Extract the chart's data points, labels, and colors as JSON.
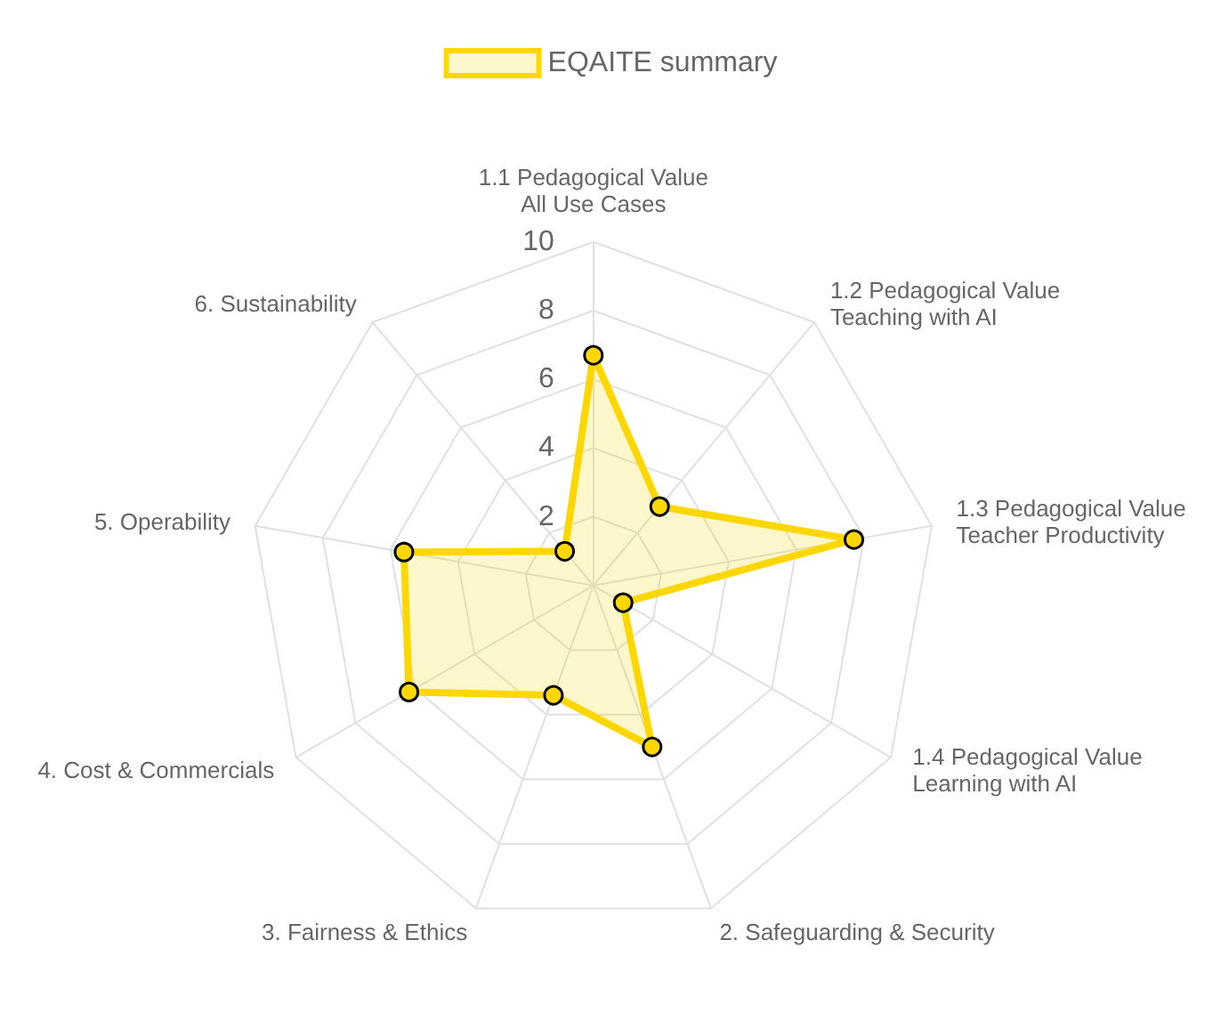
{
  "chart_data": {
    "type": "radar",
    "categories": [
      "1.1 Pedagogical Value\nAll Use Cases",
      "1.2 Pedagogical Value\nTeaching with AI",
      "1.3 Pedagogical Value\nTeacher Productivity",
      "1.4 Pedagogical Value\nLearning with AI",
      "2. Safeguarding & Security",
      "3. Fairness & Ethics",
      "4. Cost & Commercials",
      "5. Operability",
      "6. Sustainability"
    ],
    "series": [
      {
        "name": "EQAITE summary",
        "color": "#ffd700",
        "values": [
          6.7,
          3.0,
          7.7,
          1.0,
          5.0,
          3.4,
          6.2,
          5.6,
          1.3
        ]
      }
    ],
    "ylim": [
      0,
      10
    ],
    "yticks": [
      2,
      4,
      6,
      8,
      10
    ],
    "grid": true,
    "legend": "top",
    "marker": "circle"
  }
}
